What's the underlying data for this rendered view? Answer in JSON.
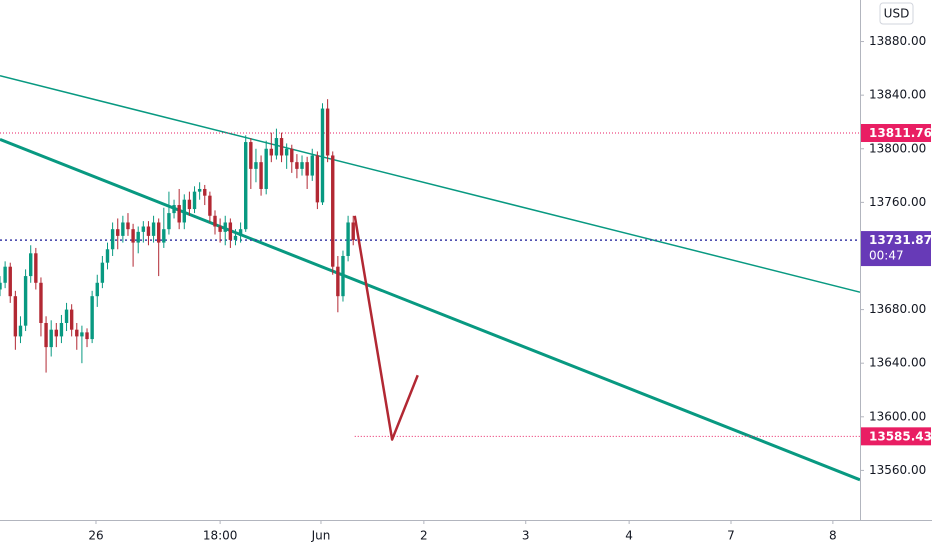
{
  "chart_data": {
    "type": "candlestick",
    "currency": "USD",
    "countdown": "00:47",
    "up_color": "#089981",
    "down_color": "#b22833",
    "x": [
      0,
      1,
      2,
      3,
      4,
      5,
      6,
      7,
      8,
      9,
      10,
      11,
      12,
      13,
      14,
      15,
      16,
      17,
      18,
      19,
      20,
      21,
      22,
      23,
      24,
      25,
      26,
      27,
      28,
      29,
      30,
      31,
      32,
      33,
      34,
      35,
      36,
      37,
      38,
      39,
      40,
      41,
      42,
      43,
      44,
      45,
      46,
      47,
      48,
      49,
      50,
      51,
      52,
      53,
      54,
      55,
      56,
      57,
      58,
      59,
      60,
      61,
      62,
      63,
      64,
      65,
      66,
      67,
      68,
      69
    ],
    "open": [
      13695,
      13700,
      13712,
      13690,
      13660,
      13668,
      13705,
      13722,
      13700,
      13670,
      13652,
      13665,
      13660,
      13670,
      13680,
      13665,
      13660,
      13663,
      13658,
      13690,
      13700,
      13715,
      13725,
      13740,
      13735,
      13745,
      13740,
      13730,
      13738,
      13742,
      13735,
      13745,
      13730,
      13740,
      13752,
      13758,
      13745,
      13762,
      13755,
      13768,
      13770,
      13765,
      13750,
      13742,
      13738,
      13745,
      13732,
      13735,
      13740,
      13805,
      13785,
      13790,
      13770,
      13800,
      13795,
      13808,
      13795,
      13800,
      13790,
      13785,
      13790,
      13780,
      13795,
      13760,
      13830,
      13795,
      13712,
      13690,
      13720,
      13745
    ],
    "high": [
      13705,
      13716,
      13715,
      13694,
      13675,
      13710,
      13728,
      13726,
      13704,
      13675,
      13672,
      13670,
      13676,
      13685,
      13684,
      13670,
      13668,
      13666,
      13694,
      13706,
      13720,
      13730,
      13745,
      13748,
      13750,
      13752,
      13744,
      13742,
      13746,
      13746,
      13750,
      13748,
      13756,
      13768,
      13762,
      13770,
      13766,
      13768,
      13772,
      13775,
      13773,
      13768,
      13754,
      13748,
      13750,
      13748,
      13740,
      13745,
      13810,
      13808,
      13800,
      13795,
      13806,
      13812,
      13815,
      13812,
      13804,
      13803,
      13796,
      13795,
      13794,
      13800,
      13798,
      13834,
      13837,
      13798,
      13720,
      13724,
      13750,
      13750
    ],
    "low": [
      13690,
      13696,
      13685,
      13650,
      13655,
      13664,
      13700,
      13695,
      13660,
      13633,
      13645,
      13652,
      13655,
      13664,
      13660,
      13650,
      13640,
      13652,
      13655,
      13682,
      13696,
      13710,
      13720,
      13725,
      13730,
      13735,
      13712,
      13722,
      13730,
      13728,
      13730,
      13705,
      13726,
      13736,
      13748,
      13740,
      13740,
      13750,
      13752,
      13762,
      13758,
      13745,
      13736,
      13730,
      13728,
      13726,
      13728,
      13730,
      13738,
      13770,
      13775,
      13765,
      13766,
      13790,
      13792,
      13790,
      13785,
      13782,
      13778,
      13780,
      13770,
      13776,
      13755,
      13758,
      13790,
      13706,
      13678,
      13686,
      13716,
      13728
    ],
    "close": [
      13700,
      13712,
      13690,
      13660,
      13668,
      13705,
      13722,
      13700,
      13670,
      13652,
      13665,
      13660,
      13670,
      13680,
      13665,
      13660,
      13663,
      13658,
      13690,
      13700,
      13715,
      13725,
      13740,
      13735,
      13745,
      13740,
      13730,
      13738,
      13742,
      13735,
      13745,
      13730,
      13740,
      13752,
      13758,
      13745,
      13762,
      13755,
      13768,
      13770,
      13765,
      13750,
      13742,
      13738,
      13745,
      13732,
      13735,
      13740,
      13805,
      13785,
      13790,
      13770,
      13800,
      13795,
      13808,
      13795,
      13800,
      13790,
      13785,
      13790,
      13780,
      13795,
      13760,
      13830,
      13795,
      13712,
      13690,
      13720,
      13745,
      13731.87
    ],
    "xlim": [
      0,
      168
    ],
    "ylim": [
      13523,
      13911
    ],
    "xticks": [
      {
        "value": 18.75,
        "label": "26"
      },
      {
        "value": 43,
        "label": "18:00"
      },
      {
        "value": 62.7,
        "label": "Jun"
      },
      {
        "value": 82.8,
        "label": "2"
      },
      {
        "value": 102.7,
        "label": "3"
      },
      {
        "value": 122.9,
        "label": "4"
      },
      {
        "value": 142.8,
        "label": "7"
      },
      {
        "value": 162.7,
        "label": "8"
      }
    ],
    "yticks": [
      {
        "value": 13880,
        "label": "13880.00"
      },
      {
        "value": 13840,
        "label": "13840.00"
      },
      {
        "value": 13800,
        "label": "13800.00"
      },
      {
        "value": 13760,
        "label": "13760.00"
      },
      {
        "value": 13680,
        "label": "13680.00"
      },
      {
        "value": 13640,
        "label": "13640.00"
      },
      {
        "value": 13600,
        "label": "13600.00"
      },
      {
        "value": 13560,
        "label": "13560.00"
      }
    ],
    "price_levels": [
      {
        "value": 13811.76,
        "color": "#e91e63",
        "start": 0
      },
      {
        "value": 13731.87,
        "color": "#3a3aa8",
        "start": 0
      },
      {
        "value": 13585.43,
        "color": "#e91e63",
        "start": 69.3
      }
    ],
    "trendlines": [
      {
        "x": [
          0,
          168
        ],
        "y": [
          13854.5,
          13693
        ],
        "color": "#089981",
        "width": 1.5
      },
      {
        "x": [
          0,
          168
        ],
        "y": [
          13807,
          13553
        ],
        "color": "#089981",
        "width": 3
      }
    ],
    "projection": {
      "x": [
        69.3,
        76.6,
        81.6
      ],
      "y": [
        13750,
        13583,
        13631
      ],
      "color": "#b22833"
    }
  }
}
